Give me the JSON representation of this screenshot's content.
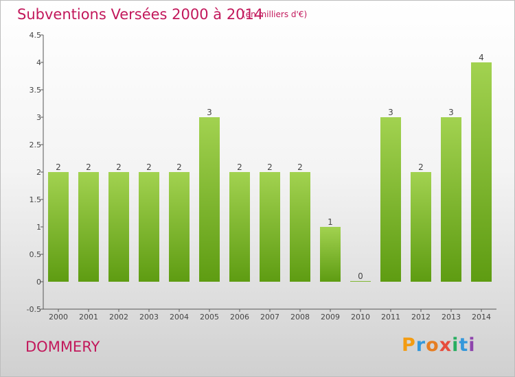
{
  "header": {
    "title": "Subventions Versées 2000 à 2014",
    "subtitle": "(en milliers d'€)"
  },
  "footer": {
    "commune": "DOMMERY",
    "logo": {
      "letters": [
        "P",
        "r",
        "o",
        "x",
        "i",
        "t",
        "i"
      ],
      "colors": [
        "#f39c12",
        "#3498db",
        "#e67e22",
        "#e74c3c",
        "#27ae60",
        "#3498db",
        "#8e44ad"
      ]
    }
  },
  "chart_data": {
    "type": "bar",
    "title": "Subventions Versées 2000 à 2014",
    "subtitle": "(en milliers d'€)",
    "categories": [
      "2000",
      "2001",
      "2002",
      "2003",
      "2004",
      "2005",
      "2006",
      "2007",
      "2008",
      "2009",
      "2010",
      "2011",
      "2012",
      "2013",
      "2014"
    ],
    "values": [
      2,
      2,
      2,
      2,
      2,
      3,
      2,
      2,
      2,
      1,
      0,
      3,
      2,
      3,
      4
    ],
    "data_labels": [
      "2",
      "2",
      "2",
      "2",
      "2",
      "3",
      "2",
      "2",
      "2",
      "1",
      "0",
      "3",
      "2",
      "3",
      "4"
    ],
    "xlabel": "",
    "ylabel": "",
    "ylim": [
      -0.5,
      4.5
    ],
    "yticks": [
      -0.5,
      0,
      0.5,
      1,
      1.5,
      2,
      2.5,
      3,
      3.5,
      4,
      4.5
    ],
    "ytick_labels": [
      "-0.5",
      "0",
      "0.5",
      "1",
      "1.5",
      "2",
      "2.5",
      "3",
      "3.5",
      "4",
      "4.5"
    ],
    "grid": false,
    "colors": {
      "bar_light": "#a2d250",
      "bar_dark": "#5e9c12",
      "axis": "#555555",
      "label": "#444444"
    }
  }
}
